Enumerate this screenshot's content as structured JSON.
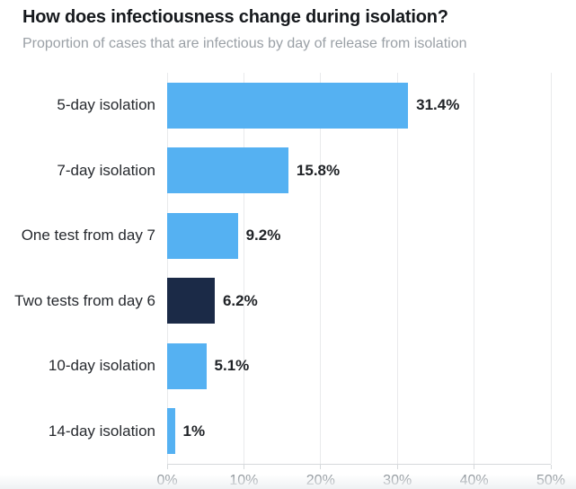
{
  "header": {
    "title": "How does infectiousness change during isolation?",
    "subtitle": "Proportion of cases that are infectious by day of release from isolation"
  },
  "colors": {
    "bar": "#55b1f2",
    "bar_highlight": "#1b2a47",
    "grid": "#e9eaec",
    "axis": "#d6d9dc",
    "title_text": "#16191d",
    "subtitle_text": "#9aa0a6",
    "label_text": "#26292e",
    "value_text": "#202327",
    "tick_text": "#8a9197"
  },
  "chart_data": {
    "type": "bar",
    "orientation": "horizontal",
    "title": "How does infectiousness change during isolation?",
    "subtitle": "Proportion of cases that are infectious by day of release from isolation",
    "categories": [
      "5-day isolation",
      "7-day isolation",
      "One test from day 7",
      "Two tests from day 6",
      "10-day isolation",
      "14-day isolation"
    ],
    "values": [
      31.4,
      15.8,
      9.2,
      6.2,
      5.1,
      1
    ],
    "value_labels": [
      "31.4%",
      "15.8%",
      "9.2%",
      "6.2%",
      "5.1%",
      "1%"
    ],
    "highlighted_index": 3,
    "highlight_meaning": "Two tests from day 6 shown in dark navy",
    "xlabel": "",
    "ylabel": "",
    "xlim": [
      0,
      50
    ],
    "x_ticks": [
      "0%",
      "10%",
      "20%",
      "30%",
      "40%",
      "50%"
    ],
    "x_tick_values": [
      0,
      10,
      20,
      30,
      40,
      50
    ],
    "grid": true,
    "legend": false
  }
}
